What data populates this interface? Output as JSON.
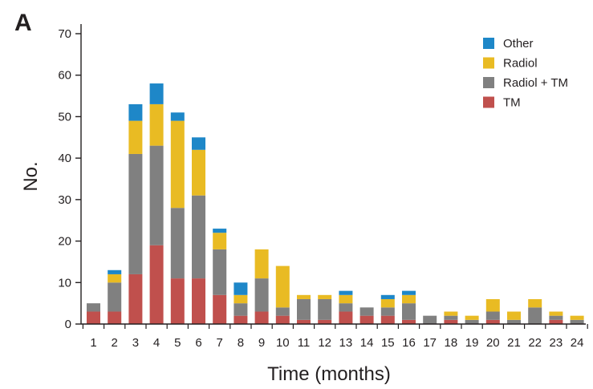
{
  "panel_label": "A",
  "chart_data": {
    "type": "bar",
    "stacked": true,
    "xlabel": "Time (months)",
    "ylabel": "No.",
    "ylim": [
      0,
      70
    ],
    "yticks": [
      "0",
      "10",
      "20",
      "30",
      "40",
      "50",
      "60",
      "70"
    ],
    "categories": [
      "1",
      "2",
      "3",
      "4",
      "5",
      "6",
      "7",
      "8",
      "9",
      "10",
      "11",
      "12",
      "13",
      "14",
      "15",
      "16",
      "17",
      "18",
      "19",
      "20",
      "21",
      "22",
      "23",
      "24"
    ],
    "series": [
      {
        "name": "TM",
        "color": "#c0504d",
        "values": [
          3,
          3,
          12,
          19,
          11,
          11,
          7,
          2,
          3,
          2,
          1,
          1,
          3,
          2,
          2,
          1,
          0,
          1,
          0,
          1,
          0,
          0,
          1,
          0
        ]
      },
      {
        "name": "Radiol + TM",
        "color": "#808080",
        "values": [
          2,
          7,
          29,
          24,
          17,
          20,
          11,
          3,
          8,
          2,
          5,
          5,
          2,
          2,
          2,
          4,
          2,
          1,
          1,
          2,
          1,
          4,
          1,
          1
        ]
      },
      {
        "name": "Radiol",
        "color": "#e9bb23",
        "values": [
          0,
          2,
          8,
          10,
          21,
          11,
          4,
          2,
          7,
          10,
          1,
          1,
          2,
          0,
          2,
          2,
          0,
          1,
          1,
          3,
          2,
          2,
          1,
          1
        ]
      },
      {
        "name": "Other",
        "color": "#1e87c8",
        "values": [
          0,
          1,
          4,
          5,
          2,
          3,
          1,
          3,
          0,
          0,
          0,
          0,
          1,
          0,
          1,
          1,
          0,
          0,
          0,
          0,
          0,
          0,
          0,
          0
        ]
      }
    ],
    "legend": {
      "position": "top-right",
      "order": [
        "Other",
        "Radiol",
        "Radiol + TM",
        "TM"
      ]
    },
    "grid": false
  }
}
